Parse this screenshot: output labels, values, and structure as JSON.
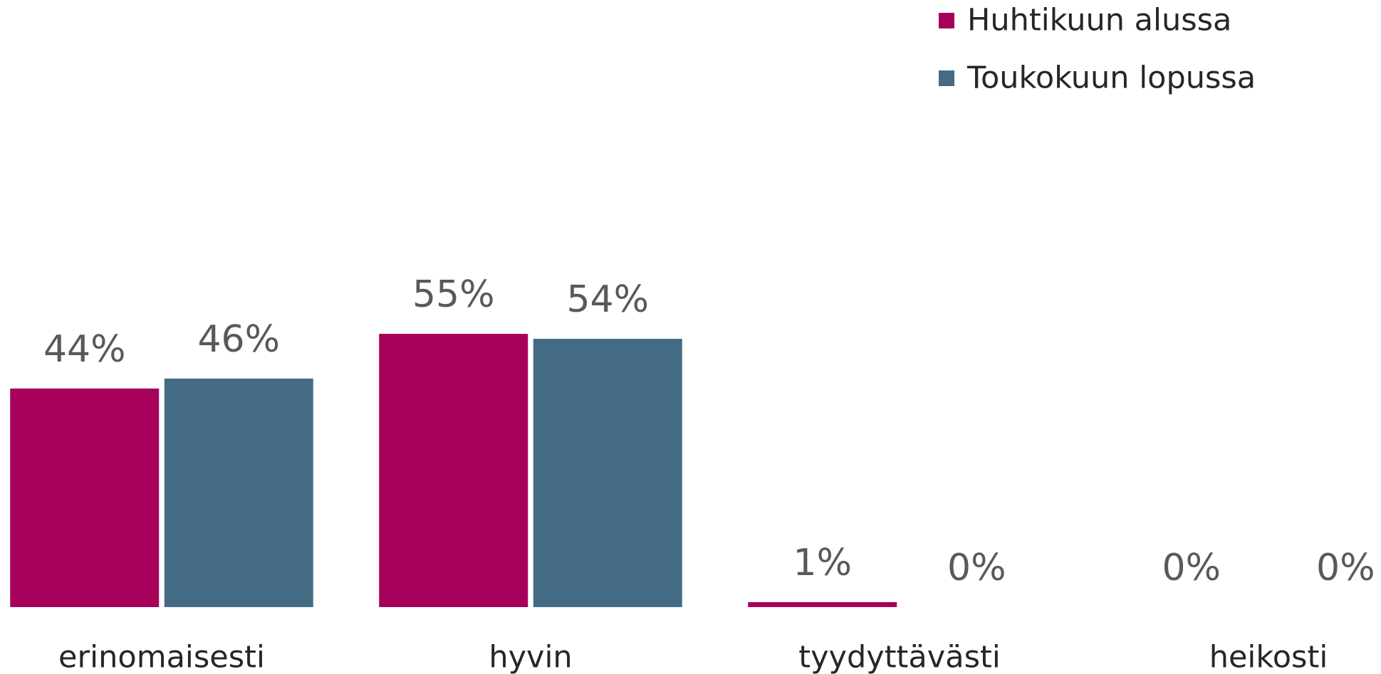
{
  "chart_data": {
    "type": "bar",
    "categories": [
      "erinomaisesti",
      "hyvin",
      "tyydyttävästi",
      "heikosti"
    ],
    "series": [
      {
        "name": "Huhtikuun alussa",
        "color": "#a6005b",
        "values": [
          44,
          55,
          1,
          0
        ],
        "value_labels": [
          "44%",
          "55%",
          "1%",
          "0%"
        ]
      },
      {
        "name": "Toukokuun lopussa",
        "color": "#436b84",
        "values": [
          46,
          54,
          0,
          0
        ],
        "value_labels": [
          "46%",
          "54%",
          "0%",
          "0%"
        ]
      }
    ],
    "legend": "top-right"
  }
}
